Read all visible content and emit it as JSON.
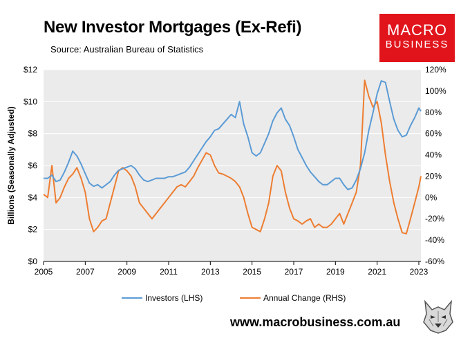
{
  "header": {
    "title": "New Investor Mortgages (Ex-Refi)",
    "subtitle": "Source: Australian Bureau of Statistics"
  },
  "logo": {
    "line1": "MACRO",
    "line2": "BUSINESS",
    "color": "#e1141c"
  },
  "footer": {
    "website": "www.macrobusiness.com.au"
  },
  "chart_data": {
    "type": "line",
    "title": "New Investor Mortgages (Ex-Refi)",
    "ylabel": "Billions (Seasonally Adjusted)",
    "xlim": [
      2005,
      2023.1
    ],
    "ylim_left": [
      0,
      12
    ],
    "ylim_right": [
      -60,
      120
    ],
    "x_ticks": [
      "2005",
      "2007",
      "2009",
      "2011",
      "2013",
      "2015",
      "2017",
      "2019",
      "2021",
      "2023"
    ],
    "x_tick_values": [
      2005,
      2007,
      2009,
      2011,
      2013,
      2015,
      2017,
      2019,
      2021,
      2023
    ],
    "left_ticks": [
      "$0",
      "$2",
      "$4",
      "$6",
      "$8",
      "$10",
      "$12"
    ],
    "left_tick_values": [
      0,
      2,
      4,
      6,
      8,
      10,
      12
    ],
    "right_ticks": [
      "-60%",
      "-40%",
      "-20%",
      "0%",
      "20%",
      "40%",
      "60%",
      "80%",
      "100%",
      "120%"
    ],
    "right_tick_values": [
      -60,
      -40,
      -20,
      0,
      20,
      40,
      60,
      80,
      100,
      120
    ],
    "plot_background": "#ebebeb",
    "legend_position": "bottom",
    "series": [
      {
        "name": "Investors (LHS)",
        "axis": "left",
        "color": "#5b9bd5",
        "x": [
          2005.0,
          2005.2,
          2005.4,
          2005.6,
          2005.8,
          2006.0,
          2006.2,
          2006.4,
          2006.6,
          2006.8,
          2007.0,
          2007.2,
          2007.4,
          2007.6,
          2007.8,
          2008.0,
          2008.2,
          2008.4,
          2008.6,
          2008.8,
          2009.0,
          2009.2,
          2009.4,
          2009.6,
          2009.8,
          2010.0,
          2010.2,
          2010.4,
          2010.6,
          2010.8,
          2011.0,
          2011.2,
          2011.4,
          2011.6,
          2011.8,
          2012.0,
          2012.2,
          2012.4,
          2012.6,
          2012.8,
          2013.0,
          2013.2,
          2013.4,
          2013.6,
          2013.8,
          2014.0,
          2014.2,
          2014.4,
          2014.6,
          2014.8,
          2015.0,
          2015.2,
          2015.4,
          2015.6,
          2015.8,
          2016.0,
          2016.2,
          2016.4,
          2016.6,
          2016.8,
          2017.0,
          2017.2,
          2017.4,
          2017.6,
          2017.8,
          2018.0,
          2018.2,
          2018.4,
          2018.6,
          2018.8,
          2019.0,
          2019.2,
          2019.4,
          2019.6,
          2019.8,
          2020.0,
          2020.2,
          2020.4,
          2020.6,
          2020.8,
          2021.0,
          2021.2,
          2021.4,
          2021.6,
          2021.8,
          2022.0,
          2022.2,
          2022.4,
          2022.6,
          2022.8,
          2023.0,
          2023.1
        ],
        "values": [
          5.2,
          5.2,
          5.4,
          5.0,
          5.1,
          5.6,
          6.2,
          6.9,
          6.6,
          6.1,
          5.5,
          4.9,
          4.7,
          4.8,
          4.6,
          4.8,
          5.0,
          5.4,
          5.7,
          5.8,
          5.9,
          6.0,
          5.8,
          5.4,
          5.1,
          5.0,
          5.1,
          5.2,
          5.2,
          5.2,
          5.3,
          5.3,
          5.4,
          5.5,
          5.6,
          5.9,
          6.3,
          6.7,
          7.1,
          7.5,
          7.8,
          8.2,
          8.3,
          8.6,
          8.9,
          9.2,
          9.0,
          10.0,
          8.6,
          7.8,
          6.8,
          6.6,
          6.8,
          7.4,
          8.0,
          8.8,
          9.3,
          9.6,
          8.9,
          8.5,
          7.8,
          7.0,
          6.5,
          6.0,
          5.6,
          5.3,
          5.0,
          4.8,
          4.8,
          5.0,
          5.2,
          5.2,
          4.8,
          4.5,
          4.6,
          5.1,
          5.8,
          6.8,
          8.2,
          9.3,
          10.5,
          11.3,
          11.2,
          10.0,
          8.9,
          8.2,
          7.8,
          7.9,
          8.5,
          9.0,
          9.6,
          9.4
        ]
      },
      {
        "name": "Annual Change (RHS)",
        "axis": "right",
        "color": "#ed7d31",
        "x": [
          2005.0,
          2005.2,
          2005.4,
          2005.6,
          2005.8,
          2006.0,
          2006.2,
          2006.4,
          2006.6,
          2006.8,
          2007.0,
          2007.2,
          2007.4,
          2007.6,
          2007.8,
          2008.0,
          2008.2,
          2008.4,
          2008.6,
          2008.8,
          2009.0,
          2009.2,
          2009.4,
          2009.6,
          2009.8,
          2010.0,
          2010.2,
          2010.4,
          2010.6,
          2010.8,
          2011.0,
          2011.2,
          2011.4,
          2011.6,
          2011.8,
          2012.0,
          2012.2,
          2012.4,
          2012.6,
          2012.8,
          2013.0,
          2013.2,
          2013.4,
          2013.6,
          2013.8,
          2014.0,
          2014.2,
          2014.4,
          2014.6,
          2014.8,
          2015.0,
          2015.2,
          2015.4,
          2015.6,
          2015.8,
          2016.0,
          2016.2,
          2016.4,
          2016.6,
          2016.8,
          2017.0,
          2017.2,
          2017.4,
          2017.6,
          2017.8,
          2018.0,
          2018.2,
          2018.4,
          2018.6,
          2018.8,
          2019.0,
          2019.2,
          2019.4,
          2019.6,
          2019.8,
          2020.0,
          2020.2,
          2020.4,
          2020.6,
          2020.8,
          2021.0,
          2021.2,
          2021.4,
          2021.6,
          2021.8,
          2022.0,
          2022.2,
          2022.4,
          2022.6,
          2022.8,
          2023.0,
          2023.1
        ],
        "values": [
          3,
          0,
          30,
          -5,
          0,
          10,
          18,
          22,
          28,
          18,
          5,
          -20,
          -32,
          -28,
          -22,
          -20,
          -5,
          10,
          25,
          28,
          25,
          20,
          10,
          -5,
          -10,
          -15,
          -20,
          -15,
          -10,
          -5,
          0,
          5,
          10,
          12,
          10,
          15,
          20,
          28,
          35,
          42,
          40,
          30,
          23,
          22,
          20,
          18,
          15,
          10,
          0,
          -15,
          -28,
          -30,
          -32,
          -20,
          -5,
          20,
          30,
          25,
          5,
          -10,
          -20,
          -22,
          -25,
          -22,
          -20,
          -28,
          -25,
          -28,
          -28,
          -25,
          -20,
          -15,
          -25,
          -15,
          -5,
          5,
          30,
          110,
          95,
          85,
          90,
          70,
          40,
          15,
          -5,
          -20,
          -33,
          -34,
          -20,
          -5,
          10,
          20
        ]
      }
    ]
  }
}
